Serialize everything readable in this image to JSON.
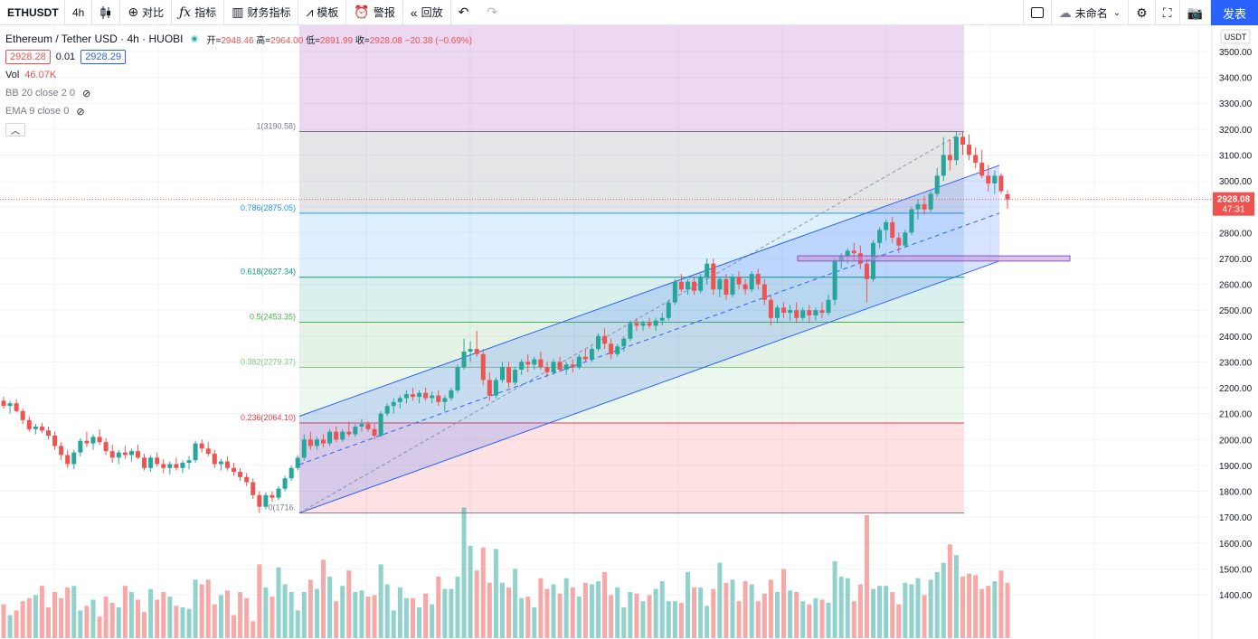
{
  "toolbar": {
    "symbol": "ETHUSDT",
    "interval": "4h",
    "candles_icon": "candles-icon",
    "compare_label": "对比",
    "indicators_label": "指标",
    "financials_label": "财务指标",
    "templates_label": "模板",
    "alert_label": "警报",
    "replay_label": "回放",
    "layout_name": "未命名",
    "publish_label": "发表"
  },
  "legend": {
    "title": "Ethereum / Tether USD · 4h · HUOBI",
    "o_label": "开=",
    "o_value": "2948.46",
    "h_label": "高=",
    "h_value": "2964.00",
    "l_label": "低=",
    "l_value": "2891.99",
    "c_label": "收=",
    "c_value": "2928.08",
    "change": "−20.38 (−0.69%)",
    "bid": "2928.28",
    "spread": "0.01",
    "ask": "2928.29",
    "vol_label": "Vol",
    "vol_value": "46.07K",
    "bb_label": "BB 20 close 2 0",
    "ema_label": "EMA 9 close 0"
  },
  "colors": {
    "up": "#26a69a",
    "down": "#ef5350",
    "accent": "#2962ff",
    "channel": "#2962ff"
  },
  "price_axis": {
    "currency": "USDT",
    "ticks": [
      3500,
      3400,
      3300,
      3200,
      3100,
      3000,
      2900,
      2800,
      2700,
      2600,
      2500,
      2400,
      2300,
      2200,
      2100,
      2000,
      1900,
      1800,
      1700,
      1600,
      1500,
      1400
    ],
    "tick_labels": [
      "3500.00",
      "3400.00",
      "3300.00",
      "3200.00",
      "3100.00",
      "3000.00",
      "2900.00",
      "2800.00",
      "2700.00",
      "2600.00",
      "2500.00",
      "2400.00",
      "2300.00",
      "2200.00",
      "2100.00",
      "2000.00",
      "1900.00",
      "1800.00",
      "1700.00",
      "1600.00",
      "1500.00",
      "1400.00"
    ],
    "last_price": "2928.08",
    "countdown": "47:31"
  },
  "chart_data": {
    "type": "candlestick",
    "symbol": "ETHUSDT",
    "exchange": "HUOBI",
    "interval": "4h",
    "ylim": [
      1400,
      3500
    ],
    "grid": true,
    "fib_retracement": {
      "levels": [
        {
          "ratio": "1",
          "price": 3190.58,
          "label": "1(3190.58)",
          "color": "#787b86",
          "fill": "rgba(120,123,134,0.20)"
        },
        {
          "ratio": "0.786",
          "price": 2875.05,
          "label": "0.786(2875.05)",
          "color": "#2196f3",
          "fill": "rgba(33,150,243,0.15)"
        },
        {
          "ratio": "0.618",
          "price": 2627.34,
          "label": "0.618(2627.34)",
          "color": "#089981",
          "fill": "rgba(8,153,129,0.15)"
        },
        {
          "ratio": "0.5",
          "price": 2453.35,
          "label": "0.5(2453.35)",
          "color": "#4caf50",
          "fill": "rgba(76,175,80,0.15)"
        },
        {
          "ratio": "0.382",
          "price": 2279.37,
          "label": "0.382(2279.37)",
          "color": "#81c784",
          "fill": "rgba(129,199,132,0.15)"
        },
        {
          "ratio": "0.236",
          "price": 2064.1,
          "label": "0.236(2064.10)",
          "color": "#f23645",
          "fill": "rgba(242,54,69,0.15)"
        },
        {
          "ratio": "0",
          "price": 1716.0,
          "label": "0(1716.",
          "color": "#787b86",
          "fill": null
        }
      ],
      "extension_fill": "rgba(156,39,176,0.18)"
    },
    "channel": {
      "upper_start": 2090,
      "upper_end": 3060,
      "lower_start": 1716,
      "lower_end": 2690,
      "mid_start": 1903,
      "mid_end": 2875
    },
    "support_zone": {
      "from": 2690,
      "to": 2710
    },
    "candles": [
      [
        2150,
        2165,
        2120,
        2130
      ],
      [
        2130,
        2150,
        2100,
        2140
      ],
      [
        2140,
        2155,
        2105,
        2110
      ],
      [
        2110,
        2120,
        2060,
        2075
      ],
      [
        2075,
        2090,
        2030,
        2040
      ],
      [
        2040,
        2060,
        2020,
        2050
      ],
      [
        2050,
        2065,
        2025,
        2035
      ],
      [
        2035,
        2050,
        2000,
        2015
      ],
      [
        2015,
        2030,
        1960,
        1975
      ],
      [
        1975,
        1990,
        1920,
        1940
      ],
      [
        1940,
        1960,
        1890,
        1905
      ],
      [
        1905,
        1960,
        1885,
        1950
      ],
      [
        1950,
        2005,
        1935,
        1995
      ],
      [
        1995,
        2030,
        1970,
        1985
      ],
      [
        1985,
        2020,
        1960,
        2010
      ],
      [
        2010,
        2040,
        1980,
        1990
      ],
      [
        1990,
        2005,
        1940,
        1955
      ],
      [
        1955,
        1980,
        1910,
        1930
      ],
      [
        1930,
        1960,
        1905,
        1950
      ],
      [
        1950,
        1975,
        1925,
        1940
      ],
      [
        1940,
        1965,
        1915,
        1955
      ],
      [
        1955,
        1980,
        1925,
        1930
      ],
      [
        1930,
        1945,
        1880,
        1890
      ],
      [
        1890,
        1940,
        1875,
        1930
      ],
      [
        1930,
        1950,
        1895,
        1905
      ],
      [
        1905,
        1925,
        1870,
        1890
      ],
      [
        1890,
        1915,
        1865,
        1905
      ],
      [
        1905,
        1930,
        1880,
        1890
      ],
      [
        1890,
        1920,
        1870,
        1910
      ],
      [
        1910,
        1935,
        1885,
        1920
      ],
      [
        1920,
        1995,
        1910,
        1985
      ],
      [
        1985,
        2000,
        1950,
        1965
      ],
      [
        1965,
        1990,
        1935,
        1945
      ],
      [
        1945,
        1960,
        1890,
        1905
      ],
      [
        1905,
        1925,
        1880,
        1915
      ],
      [
        1915,
        1935,
        1880,
        1890
      ],
      [
        1890,
        1910,
        1860,
        1875
      ],
      [
        1875,
        1890,
        1840,
        1855
      ],
      [
        1855,
        1870,
        1820,
        1835
      ],
      [
        1835,
        1850,
        1770,
        1785
      ],
      [
        1785,
        1800,
        1716,
        1740
      ],
      [
        1740,
        1795,
        1730,
        1785
      ],
      [
        1785,
        1800,
        1760,
        1775
      ],
      [
        1775,
        1820,
        1765,
        1810
      ],
      [
        1810,
        1860,
        1800,
        1850
      ],
      [
        1850,
        1900,
        1840,
        1890
      ],
      [
        1890,
        1940,
        1880,
        1930
      ],
      [
        1930,
        2020,
        1920,
        2000
      ],
      [
        2000,
        2030,
        1960,
        1975
      ],
      [
        1975,
        2010,
        1960,
        2000
      ],
      [
        2000,
        2020,
        1970,
        1985
      ],
      [
        1985,
        2040,
        1975,
        2030
      ],
      [
        2030,
        2050,
        1990,
        2000
      ],
      [
        2000,
        2040,
        1990,
        2030
      ],
      [
        2030,
        2070,
        2010,
        2020
      ],
      [
        2020,
        2060,
        2010,
        2050
      ],
      [
        2050,
        2080,
        2030,
        2060
      ],
      [
        2060,
        2070,
        2030,
        2040
      ],
      [
        2040,
        2060,
        2000,
        2015
      ],
      [
        2015,
        2110,
        2010,
        2100
      ],
      [
        2100,
        2140,
        2090,
        2130
      ],
      [
        2130,
        2160,
        2100,
        2145
      ],
      [
        2145,
        2170,
        2120,
        2160
      ],
      [
        2160,
        2190,
        2140,
        2175
      ],
      [
        2175,
        2200,
        2150,
        2165
      ],
      [
        2165,
        2190,
        2140,
        2180
      ],
      [
        2180,
        2200,
        2150,
        2160
      ],
      [
        2160,
        2185,
        2140,
        2170
      ],
      [
        2170,
        2190,
        2130,
        2145
      ],
      [
        2145,
        2170,
        2110,
        2160
      ],
      [
        2160,
        2200,
        2150,
        2190
      ],
      [
        2190,
        2290,
        2180,
        2280
      ],
      [
        2280,
        2390,
        2270,
        2340
      ],
      [
        2340,
        2380,
        2300,
        2350
      ],
      [
        2350,
        2420,
        2320,
        2330
      ],
      [
        2330,
        2350,
        2210,
        2230
      ],
      [
        2230,
        2260,
        2150,
        2170
      ],
      [
        2170,
        2240,
        2160,
        2230
      ],
      [
        2230,
        2300,
        2220,
        2280
      ],
      [
        2280,
        2300,
        2200,
        2220
      ],
      [
        2220,
        2280,
        2210,
        2270
      ],
      [
        2270,
        2310,
        2250,
        2300
      ],
      [
        2300,
        2330,
        2260,
        2290
      ],
      [
        2290,
        2320,
        2270,
        2310
      ],
      [
        2310,
        2340,
        2270,
        2280
      ],
      [
        2280,
        2300,
        2240,
        2260
      ],
      [
        2260,
        2310,
        2250,
        2300
      ],
      [
        2300,
        2320,
        2260,
        2270
      ],
      [
        2270,
        2300,
        2250,
        2290
      ],
      [
        2290,
        2310,
        2260,
        2280
      ],
      [
        2280,
        2330,
        2270,
        2320
      ],
      [
        2320,
        2350,
        2300,
        2310
      ],
      [
        2310,
        2360,
        2300,
        2350
      ],
      [
        2350,
        2410,
        2340,
        2400
      ],
      [
        2400,
        2430,
        2350,
        2370
      ],
      [
        2370,
        2390,
        2310,
        2330
      ],
      [
        2330,
        2370,
        2320,
        2360
      ],
      [
        2360,
        2400,
        2340,
        2390
      ],
      [
        2390,
        2460,
        2380,
        2450
      ],
      [
        2450,
        2470,
        2420,
        2440
      ],
      [
        2440,
        2460,
        2420,
        2450
      ],
      [
        2450,
        2470,
        2430,
        2440
      ],
      [
        2440,
        2470,
        2420,
        2460
      ],
      [
        2460,
        2490,
        2440,
        2470
      ],
      [
        2470,
        2540,
        2460,
        2530
      ],
      [
        2530,
        2620,
        2520,
        2610
      ],
      [
        2610,
        2640,
        2570,
        2580
      ],
      [
        2580,
        2620,
        2560,
        2610
      ],
      [
        2610,
        2630,
        2560,
        2575
      ],
      [
        2575,
        2640,
        2565,
        2630
      ],
      [
        2630,
        2700,
        2600,
        2680
      ],
      [
        2680,
        2700,
        2560,
        2580
      ],
      [
        2580,
        2630,
        2550,
        2620
      ],
      [
        2620,
        2640,
        2540,
        2560
      ],
      [
        2560,
        2640,
        2550,
        2630
      ],
      [
        2630,
        2650,
        2580,
        2600
      ],
      [
        2600,
        2620,
        2560,
        2580
      ],
      [
        2580,
        2650,
        2570,
        2640
      ],
      [
        2640,
        2660,
        2580,
        2600
      ],
      [
        2600,
        2620,
        2520,
        2540
      ],
      [
        2540,
        2560,
        2440,
        2470
      ],
      [
        2470,
        2520,
        2450,
        2510
      ],
      [
        2510,
        2530,
        2470,
        2490
      ],
      [
        2490,
        2520,
        2460,
        2500
      ],
      [
        2500,
        2530,
        2450,
        2470
      ],
      [
        2470,
        2510,
        2460,
        2500
      ],
      [
        2500,
        2520,
        2450,
        2480
      ],
      [
        2480,
        2510,
        2460,
        2500
      ],
      [
        2500,
        2530,
        2470,
        2490
      ],
      [
        2490,
        2560,
        2480,
        2540
      ],
      [
        2540,
        2700,
        2520,
        2690
      ],
      [
        2690,
        2720,
        2660,
        2710
      ],
      [
        2710,
        2740,
        2680,
        2730
      ],
      [
        2730,
        2760,
        2690,
        2720
      ],
      [
        2720,
        2750,
        2660,
        2680
      ],
      [
        2680,
        2700,
        2530,
        2620
      ],
      [
        2620,
        2770,
        2610,
        2760
      ],
      [
        2760,
        2820,
        2740,
        2810
      ],
      [
        2810,
        2850,
        2770,
        2840
      ],
      [
        2840,
        2860,
        2760,
        2780
      ],
      [
        2780,
        2800,
        2720,
        2750
      ],
      [
        2750,
        2810,
        2740,
        2800
      ],
      [
        2800,
        2900,
        2790,
        2890
      ],
      [
        2890,
        2930,
        2850,
        2910
      ],
      [
        2910,
        2940,
        2870,
        2890
      ],
      [
        2890,
        2960,
        2880,
        2950
      ],
      [
        2950,
        3050,
        2940,
        3020
      ],
      [
        3020,
        3170,
        3000,
        3100
      ],
      [
        3100,
        3160,
        3040,
        3080
      ],
      [
        3080,
        3190,
        3060,
        3170
      ],
      [
        3170,
        3190,
        3100,
        3140
      ],
      [
        3140,
        3180,
        3080,
        3100
      ],
      [
        3100,
        3130,
        3050,
        3070
      ],
      [
        3070,
        3120,
        3010,
        3020
      ],
      [
        3020,
        3060,
        2960,
        2990
      ],
      [
        2990,
        3040,
        2950,
        3020
      ],
      [
        3020,
        3030,
        2950,
        2960
      ],
      [
        2948,
        2964,
        2892,
        2928
      ]
    ],
    "volume": [
      22,
      15,
      18,
      24,
      26,
      28,
      34,
      20,
      30,
      26,
      33,
      34,
      18,
      21,
      25,
      14,
      27,
      23,
      20,
      34,
      30,
      25,
      17,
      32,
      25,
      30,
      27,
      21,
      20,
      19,
      38,
      35,
      38,
      22,
      28,
      31,
      15,
      30,
      26,
      11,
      48,
      33,
      27,
      46,
      35,
      30,
      18,
      30,
      38,
      32,
      51,
      40,
      24,
      34,
      44,
      30,
      31,
      27,
      28,
      48,
      35,
      18,
      33,
      26,
      26,
      20,
      29,
      22,
      40,
      32,
      32,
      40,
      85,
      60,
      44,
      59,
      36,
      58,
      36,
      33,
      45,
      26,
      27,
      20,
      39,
      32,
      35,
      29,
      39,
      33,
      27,
      36,
      35,
      37,
      43,
      28,
      33,
      20,
      30,
      29,
      24,
      28,
      32,
      37,
      24,
      24,
      23,
      43,
      33,
      33,
      21,
      32,
      49,
      36,
      38,
      24,
      37,
      35,
      24,
      29,
      38,
      30,
      45,
      31,
      30,
      24,
      22,
      26,
      25,
      23,
      50,
      40,
      39,
      24,
      35,
      80,
      32,
      34,
      34,
      30,
      22,
      36,
      35,
      39,
      28,
      38,
      43,
      49,
      61,
      54,
      40,
      42,
      41,
      32,
      34,
      37,
      44,
      36
    ]
  }
}
